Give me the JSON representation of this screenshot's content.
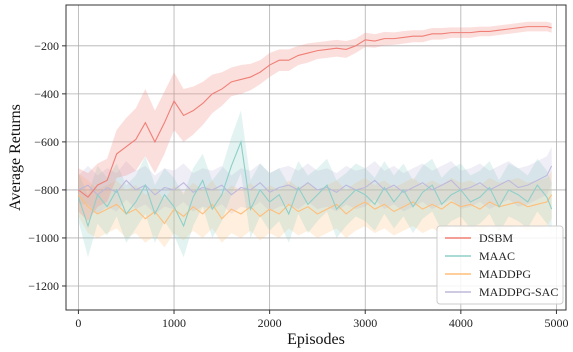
{
  "chart_data": {
    "type": "line",
    "title": "",
    "xlabel": "Episodes",
    "ylabel": "Average Returns",
    "xlim": [
      -130,
      5100
    ],
    "ylim": [
      -1300,
      -30
    ],
    "xticks": [
      0,
      1000,
      2000,
      3000,
      4000,
      5000
    ],
    "yticks": [
      -1200,
      -1000,
      -800,
      -600,
      -400,
      -200
    ],
    "xtick_labels": [
      "0",
      "1000",
      "2000",
      "3000",
      "4000",
      "5000"
    ],
    "ytick_labels": [
      "−1200",
      "−1000",
      "−800",
      "−600",
      "−400",
      "−200"
    ],
    "grid": true,
    "legend_position": "lower-right",
    "series": [
      {
        "name": "DSBM",
        "color": "#f07f76",
        "x": [
          0,
          100,
          200,
          300,
          400,
          500,
          600,
          700,
          800,
          900,
          1000,
          1100,
          1200,
          1300,
          1400,
          1500,
          1600,
          1700,
          1800,
          1900,
          2000,
          2100,
          2200,
          2300,
          2400,
          2500,
          2600,
          2700,
          2800,
          2900,
          3000,
          3100,
          3200,
          3300,
          3400,
          3500,
          3600,
          3700,
          3800,
          3900,
          4000,
          4100,
          4200,
          4300,
          4400,
          4500,
          4600,
          4700,
          4800,
          4900,
          4950
        ],
        "values": [
          -800,
          -830,
          -780,
          -760,
          -650,
          -620,
          -590,
          -520,
          -600,
          -520,
          -430,
          -490,
          -470,
          -440,
          -400,
          -380,
          -350,
          -340,
          -330,
          -310,
          -280,
          -260,
          -260,
          -240,
          -230,
          -220,
          -215,
          -210,
          -215,
          -200,
          -175,
          -180,
          -170,
          -170,
          -165,
          -160,
          -160,
          -150,
          -150,
          -145,
          -145,
          -145,
          -140,
          -140,
          -135,
          -130,
          -125,
          -120,
          -120,
          -120,
          -125
        ],
        "band": [
          90,
          100,
          90,
          90,
          100,
          120,
          130,
          140,
          130,
          130,
          120,
          110,
          100,
          90,
          80,
          70,
          60,
          60,
          55,
          50,
          50,
          45,
          45,
          40,
          40,
          35,
          35,
          35,
          35,
          30,
          30,
          28,
          28,
          26,
          26,
          25,
          25,
          24,
          24,
          22,
          22,
          22,
          20,
          20,
          20,
          20,
          20,
          20,
          20,
          20,
          20
        ]
      },
      {
        "name": "MAAC",
        "color": "#8ecfc9",
        "x": [
          0,
          100,
          200,
          300,
          400,
          500,
          600,
          700,
          800,
          900,
          1000,
          1100,
          1200,
          1300,
          1400,
          1500,
          1600,
          1700,
          1800,
          1900,
          2000,
          2100,
          2200,
          2300,
          2400,
          2500,
          2600,
          2700,
          2800,
          2900,
          3000,
          3100,
          3200,
          3300,
          3400,
          3500,
          3600,
          3700,
          3800,
          3900,
          4000,
          4100,
          4200,
          4300,
          4400,
          4500,
          4600,
          4700,
          4800,
          4900,
          4950
        ],
        "values": [
          -830,
          -950,
          -820,
          -870,
          -800,
          -900,
          -850,
          -780,
          -900,
          -820,
          -870,
          -950,
          -830,
          -760,
          -880,
          -820,
          -700,
          -600,
          -880,
          -800,
          -850,
          -820,
          -900,
          -790,
          -860,
          -820,
          -780,
          -880,
          -840,
          -800,
          -820,
          -860,
          -790,
          -850,
          -800,
          -870,
          -810,
          -780,
          -860,
          -820,
          -800,
          -850,
          -830,
          -790,
          -870,
          -800,
          -820,
          -850,
          -780,
          -830,
          -880
        ],
        "band": [
          100,
          130,
          120,
          120,
          110,
          120,
          110,
          120,
          120,
          110,
          120,
          130,
          120,
          110,
          120,
          110,
          120,
          130,
          120,
          110,
          120,
          110,
          120,
          110,
          120,
          110,
          110,
          120,
          110,
          110,
          110,
          110,
          110,
          110,
          110,
          110,
          110,
          110,
          110,
          110,
          110,
          110,
          110,
          110,
          110,
          110,
          110,
          110,
          110,
          110,
          110
        ]
      },
      {
        "name": "MADDPG",
        "color": "#ffbe7a",
        "x": [
          0,
          100,
          200,
          300,
          400,
          500,
          600,
          700,
          800,
          900,
          1000,
          1100,
          1200,
          1300,
          1400,
          1500,
          1600,
          1700,
          1800,
          1900,
          2000,
          2100,
          2200,
          2300,
          2400,
          2500,
          2600,
          2700,
          2800,
          2900,
          3000,
          3100,
          3200,
          3300,
          3400,
          3500,
          3600,
          3700,
          3800,
          3900,
          4000,
          4100,
          4200,
          4300,
          4400,
          4500,
          4600,
          4700,
          4800,
          4900,
          4950
        ],
        "values": [
          -820,
          -870,
          -900,
          -880,
          -860,
          -900,
          -880,
          -920,
          -890,
          -940,
          -880,
          -910,
          -870,
          -900,
          -860,
          -920,
          -880,
          -900,
          -870,
          -910,
          -880,
          -900,
          -860,
          -890,
          -870,
          -900,
          -880,
          -860,
          -900,
          -870,
          -850,
          -880,
          -860,
          -890,
          -870,
          -850,
          -880,
          -860,
          -880,
          -850,
          -870,
          -860,
          -880,
          -850,
          -870,
          -860,
          -850,
          -870,
          -860,
          -850,
          -820
        ],
        "band": [
          90,
          110,
          100,
          100,
          100,
          100,
          100,
          100,
          100,
          100,
          100,
          100,
          100,
          100,
          100,
          100,
          100,
          100,
          100,
          100,
          100,
          100,
          100,
          100,
          100,
          100,
          100,
          100,
          100,
          100,
          100,
          100,
          100,
          100,
          100,
          100,
          100,
          100,
          100,
          100,
          100,
          100,
          100,
          100,
          100,
          100,
          100,
          100,
          100,
          100,
          100
        ]
      },
      {
        "name": "MADDPG-SAC",
        "color": "#beb8dc",
        "x": [
          0,
          100,
          200,
          300,
          400,
          500,
          600,
          700,
          800,
          900,
          1000,
          1100,
          1200,
          1300,
          1400,
          1500,
          1600,
          1700,
          1800,
          1900,
          2000,
          2100,
          2200,
          2300,
          2400,
          2500,
          2600,
          2700,
          2800,
          2900,
          3000,
          3100,
          3200,
          3300,
          3400,
          3500,
          3600,
          3700,
          3800,
          3900,
          4000,
          4100,
          4200,
          4300,
          4400,
          4500,
          4600,
          4700,
          4800,
          4900,
          4950
        ],
        "values": [
          -800,
          -780,
          -820,
          -790,
          -810,
          -760,
          -800,
          -780,
          -820,
          -790,
          -800,
          -770,
          -810,
          -790,
          -800,
          -780,
          -820,
          -790,
          -800,
          -770,
          -810,
          -790,
          -780,
          -800,
          -770,
          -800,
          -790,
          -810,
          -780,
          -800,
          -790,
          -760,
          -800,
          -780,
          -810,
          -790,
          -770,
          -800,
          -780,
          -760,
          -800,
          -790,
          -770,
          -800,
          -780,
          -760,
          -790,
          -780,
          -760,
          -740,
          -700
        ],
        "band": [
          60,
          80,
          80,
          80,
          80,
          80,
          80,
          80,
          80,
          80,
          80,
          80,
          80,
          80,
          80,
          80,
          80,
          80,
          80,
          80,
          80,
          80,
          80,
          80,
          80,
          80,
          80,
          80,
          80,
          80,
          80,
          80,
          80,
          80,
          80,
          80,
          80,
          80,
          80,
          80,
          80,
          80,
          80,
          80,
          80,
          80,
          80,
          80,
          80,
          80,
          80
        ]
      }
    ]
  }
}
